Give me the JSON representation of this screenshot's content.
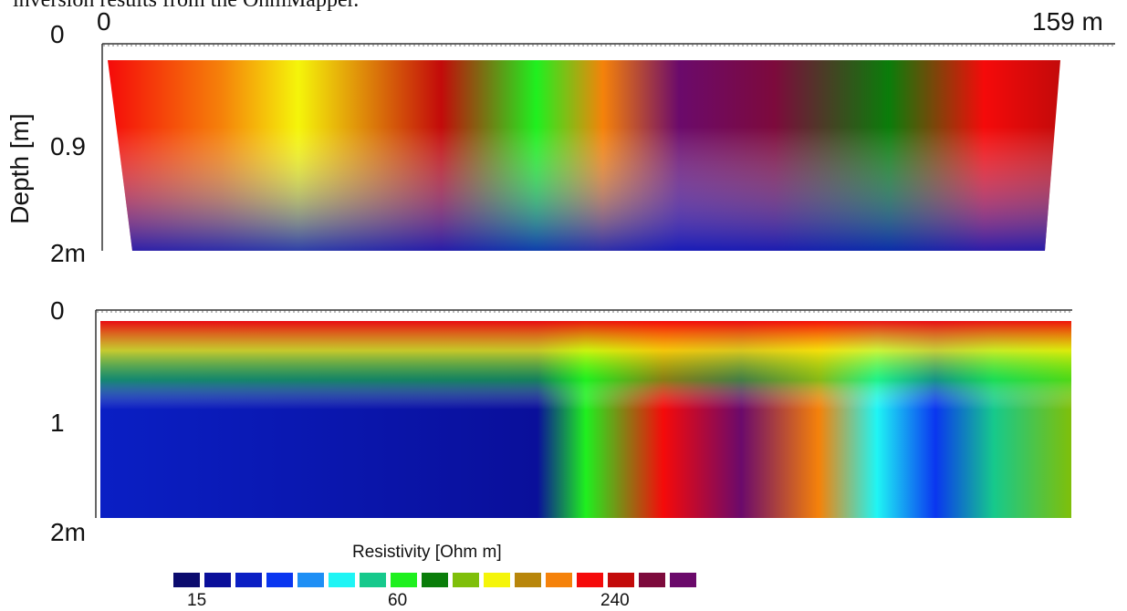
{
  "caption": "inversion results from the OhmMapper.",
  "chart_data": [
    {
      "type": "heatmap",
      "name": "upper-section",
      "xlabel_start": "0",
      "xlabel_end": "159 m",
      "ylabel": "Depth [m]",
      "yticks": [
        "0",
        "0.9",
        "2m"
      ],
      "xlim": [
        0,
        159
      ],
      "ylim": [
        0,
        2
      ],
      "color_bins_ohm_m": [
        10,
        12,
        15,
        19,
        24,
        30,
        38,
        48,
        60,
        75,
        95,
        120,
        150,
        190,
        240,
        300,
        380
      ]
    },
    {
      "type": "heatmap",
      "name": "lower-section",
      "yticks": [
        "0",
        "1",
        "2m"
      ],
      "xlim": [
        0,
        159
      ],
      "ylim": [
        0,
        2
      ]
    }
  ],
  "colorbar": {
    "title": "Resistivity [Ohm m]",
    "tick_labels": [
      "15",
      "60",
      "240"
    ],
    "colors": [
      "#0b0b6e",
      "#0a0f9a",
      "#0b1fc4",
      "#0a36f0",
      "#1e8ff5",
      "#1ff5f5",
      "#16c98c",
      "#1ff01f",
      "#0a7d0a",
      "#7fbf0a",
      "#f5f50a",
      "#b8860b",
      "#f5820a",
      "#f50a0a",
      "#c30a0a",
      "#7d0a3c",
      "#6b0a6b"
    ]
  }
}
